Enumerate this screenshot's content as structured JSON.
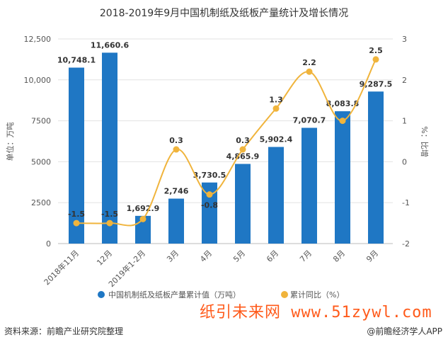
{
  "chart_data": {
    "type": "bar+line",
    "title": "2018-2019年9月中国机制纸及纸板产量统计及增长情况",
    "categories": [
      "2018年11月",
      "12月",
      "2019年1-2月",
      "3月",
      "4月",
      "5月",
      "6月",
      "7月",
      "8月",
      "9月"
    ],
    "series": [
      {
        "name": "中国机制纸及纸板产量累计值（万吨）",
        "type": "bar",
        "axis": "left",
        "color": "#1f77c4",
        "values": [
          10748.1,
          11660.6,
          1692.9,
          2746,
          3730.5,
          4865.9,
          5902.4,
          7070.7,
          8083.8,
          9287.5
        ],
        "labels": [
          "10,748.1",
          "11,660.6",
          "1,692.9",
          "2,746",
          "3,730.5",
          "4,865.9",
          "5,902.4",
          "7,070.7",
          "8,083.8",
          "9,287.5"
        ]
      },
      {
        "name": "累计同比（%）",
        "type": "line",
        "axis": "right",
        "color": "#f0b43c",
        "values": [
          -1.5,
          -1.5,
          -1.4,
          0.3,
          -0.8,
          0.3,
          1.3,
          2.2,
          1.0,
          2.5
        ],
        "labels": [
          "-1.5",
          "-1.5",
          "",
          "0.3",
          "-0.8",
          "0.3",
          "1.3",
          "2.2",
          "",
          "2.5"
        ]
      }
    ],
    "ylabel": "单位：万吨",
    "y2label": "%：比增",
    "ylim": [
      0,
      12500
    ],
    "yticks": [
      "0",
      "2500",
      "5000",
      "7500",
      "10,000",
      "12,500"
    ],
    "y2lim": [
      -2,
      3
    ],
    "y2ticks": [
      "-2",
      "-1",
      "0",
      "1",
      "2",
      "3"
    ],
    "grid": true,
    "legend": "bottom"
  },
  "footer": {
    "source": "资料来源：前瞻产业研究院整理",
    "credit": "@前瞻经济学人APP"
  },
  "watermark": "纸引未来网 www.51zywl.com"
}
